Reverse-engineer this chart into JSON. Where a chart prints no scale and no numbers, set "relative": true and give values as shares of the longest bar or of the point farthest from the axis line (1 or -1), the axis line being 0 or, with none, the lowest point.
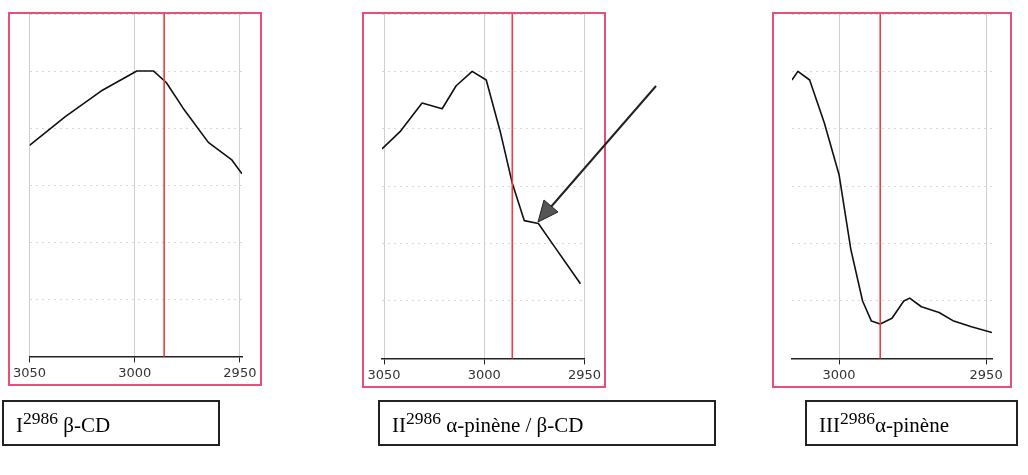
{
  "chart_data": [
    {
      "type": "line",
      "title": "I$^{2986}$ β-CD",
      "relative": true,
      "grid": true,
      "marker": "none",
      "xlim": [
        3050,
        2949
      ],
      "xticks": [
        3050,
        3000,
        2950
      ],
      "ref_lines": [
        {
          "axis": "x",
          "value": 2986,
          "color": "#f03c3c"
        }
      ],
      "series": [
        {
          "color": "#111111",
          "x": [
            3050,
            3033,
            3016,
            2999,
            2991,
            2985,
            2977,
            2965,
            2954,
            2949
          ],
          "values": [
            0.74,
            0.84,
            0.93,
            1,
            1,
            0.96,
            0.87,
            0.75,
            0.69,
            0.64
          ]
        }
      ]
    },
    {
      "type": "line",
      "title": "II$^{2986}$ α-pinène / β-CD",
      "relative": true,
      "grid": true,
      "marker": "none",
      "xlim": [
        3051,
        2950
      ],
      "xticks": [
        3050,
        3000,
        2950
      ],
      "ref_lines": [
        {
          "axis": "x",
          "value": 2986,
          "color": "#f03c3c"
        }
      ],
      "series": [
        {
          "color": "#111111",
          "x": [
            3051,
            3042,
            3031,
            3021,
            3014,
            3006,
            2999,
            2992,
            2986,
            2980,
            2973,
            2964,
            2952
          ],
          "values": [
            0.73,
            0.79,
            0.89,
            0.87,
            0.95,
            1,
            0.97,
            0.79,
            0.61,
            0.48,
            0.47,
            0.38,
            0.26
          ]
        }
      ]
    },
    {
      "type": "line",
      "title": "III$^{2986}$α-pinène",
      "relative": true,
      "grid": true,
      "marker": "none",
      "xlim": [
        3016,
        2948
      ],
      "xticks": [
        3000,
        2950
      ],
      "ref_lines": [
        {
          "axis": "x",
          "value": 2986,
          "color": "#f03c3c"
        }
      ],
      "series": [
        {
          "color": "#111111",
          "x": [
            3016,
            3014,
            3010,
            3005,
            3000,
            2996,
            2992,
            2989,
            2986,
            2982,
            2978,
            2976,
            2972,
            2966,
            2961,
            2955,
            2948
          ],
          "values": [
            0.97,
            1,
            0.97,
            0.82,
            0.64,
            0.38,
            0.2,
            0.13,
            0.12,
            0.14,
            0.2,
            0.21,
            0.18,
            0.16,
            0.13,
            0.11,
            0.09
          ]
        }
      ]
    }
  ]
}
